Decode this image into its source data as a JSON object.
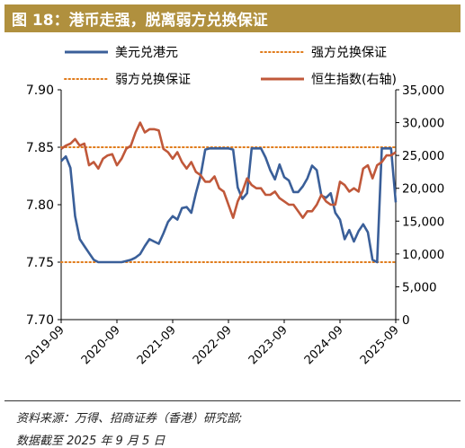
{
  "header": {
    "title": "图 18：港币走强，脱离弱方兑换保证"
  },
  "footer": {
    "source": "资料来源：万得、招商证券（香港）研究部;",
    "date": "数据截至 2025 年 9 月 5 日"
  },
  "chart_data": {
    "type": "line",
    "title": "",
    "xlabel": "",
    "ylabel": "",
    "x_ticks": [
      "2019-09",
      "2020-09",
      "2021-09",
      "2022-09",
      "2023-09",
      "2024-09",
      "2025-09"
    ],
    "ylim_left": [
      7.7,
      7.9
    ],
    "yticks_left": [
      "7.70",
      "7.75",
      "7.80",
      "7.85",
      "7.90"
    ],
    "ylim_right": [
      0,
      35000
    ],
    "yticks_right": [
      "0",
      "5,000",
      "10,000",
      "15,000",
      "20,000",
      "25,000",
      "30,000",
      "35,000"
    ],
    "legend": {
      "placement": "top",
      "items": [
        "美元兑港元",
        "强方兑换保证",
        "弱方兑换保证",
        "恒生指数(右轴)"
      ]
    },
    "reference_lines": [
      {
        "name": "强方兑换保证",
        "value": 7.75,
        "axis": "left",
        "color": "#e07b1a"
      },
      {
        "name": "弱方兑换保证",
        "value": 7.85,
        "axis": "left",
        "color": "#e07b1a"
      }
    ],
    "series": [
      {
        "name": "美元兑港元",
        "axis": "left",
        "color": "#3a5f99",
        "x": [
          "2019-09",
          "2019-10",
          "2019-11",
          "2019-12",
          "2020-01",
          "2020-02",
          "2020-03",
          "2020-04",
          "2020-05",
          "2020-06",
          "2020-07",
          "2020-08",
          "2020-09",
          "2020-10",
          "2020-11",
          "2020-12",
          "2021-01",
          "2021-02",
          "2021-03",
          "2021-04",
          "2021-05",
          "2021-06",
          "2021-07",
          "2021-08",
          "2021-09",
          "2021-10",
          "2021-11",
          "2021-12",
          "2022-01",
          "2022-02",
          "2022-03",
          "2022-04",
          "2022-05",
          "2022-06",
          "2022-07",
          "2022-08",
          "2022-09",
          "2022-10",
          "2022-11",
          "2022-12",
          "2023-01",
          "2023-02",
          "2023-03",
          "2023-04",
          "2023-05",
          "2023-06",
          "2023-07",
          "2023-08",
          "2023-09",
          "2023-10",
          "2023-11",
          "2023-12",
          "2024-01",
          "2024-02",
          "2024-03",
          "2024-04",
          "2024-05",
          "2024-06",
          "2024-07",
          "2024-08",
          "2024-09",
          "2024-10",
          "2024-11",
          "2024-12",
          "2025-01",
          "2025-02",
          "2025-03",
          "2025-04",
          "2025-05",
          "2025-06",
          "2025-07",
          "2025-08",
          "2025-09"
        ],
        "values": [
          7.838,
          7.842,
          7.832,
          7.79,
          7.77,
          7.764,
          7.758,
          7.752,
          7.75,
          7.75,
          7.75,
          7.75,
          7.75,
          7.75,
          7.751,
          7.752,
          7.754,
          7.757,
          7.764,
          7.77,
          7.768,
          7.766,
          7.775,
          7.785,
          7.79,
          7.787,
          7.797,
          7.798,
          7.793,
          7.81,
          7.825,
          7.848,
          7.849,
          7.849,
          7.849,
          7.849,
          7.849,
          7.848,
          7.815,
          7.805,
          7.81,
          7.849,
          7.849,
          7.849,
          7.841,
          7.83,
          7.822,
          7.835,
          7.824,
          7.821,
          7.811,
          7.811,
          7.816,
          7.823,
          7.834,
          7.83,
          7.808,
          7.806,
          7.81,
          7.793,
          7.787,
          7.77,
          7.778,
          7.768,
          7.777,
          7.783,
          7.776,
          7.752,
          7.75,
          7.849,
          7.849,
          7.849,
          7.802
        ]
      },
      {
        "name": "恒生指数(右轴)",
        "axis": "right",
        "color": "#c0583a",
        "x": [
          "2019-09",
          "2019-10",
          "2019-11",
          "2019-12",
          "2020-01",
          "2020-02",
          "2020-03",
          "2020-04",
          "2020-05",
          "2020-06",
          "2020-07",
          "2020-08",
          "2020-09",
          "2020-10",
          "2020-11",
          "2020-12",
          "2021-01",
          "2021-02",
          "2021-03",
          "2021-04",
          "2021-05",
          "2021-06",
          "2021-07",
          "2021-08",
          "2021-09",
          "2021-10",
          "2021-11",
          "2021-12",
          "2022-01",
          "2022-02",
          "2022-03",
          "2022-04",
          "2022-05",
          "2022-06",
          "2022-07",
          "2022-08",
          "2022-09",
          "2022-10",
          "2022-11",
          "2022-12",
          "2023-01",
          "2023-02",
          "2023-03",
          "2023-04",
          "2023-05",
          "2023-06",
          "2023-07",
          "2023-08",
          "2023-09",
          "2023-10",
          "2023-11",
          "2023-12",
          "2024-01",
          "2024-02",
          "2024-03",
          "2024-04",
          "2024-05",
          "2024-06",
          "2024-07",
          "2024-08",
          "2024-09",
          "2024-10",
          "2024-11",
          "2024-12",
          "2025-01",
          "2025-02",
          "2025-03",
          "2025-04",
          "2025-05",
          "2025-06",
          "2025-07",
          "2025-08",
          "2025-09"
        ],
        "values": [
          26000,
          26500,
          26800,
          27500,
          26500,
          26800,
          23500,
          24000,
          23000,
          24500,
          25000,
          25200,
          23500,
          24500,
          26000,
          26500,
          28500,
          30000,
          28500,
          29000,
          29000,
          28800,
          26000,
          25500,
          24500,
          25500,
          24000,
          23000,
          24000,
          22500,
          22000,
          21000,
          21000,
          21800,
          20000,
          19500,
          17500,
          15500,
          18000,
          19500,
          21500,
          20500,
          20000,
          20000,
          19000,
          19000,
          19500,
          18500,
          18000,
          17500,
          17500,
          16500,
          15500,
          16500,
          16500,
          17500,
          19000,
          18000,
          17500,
          17500,
          21000,
          20500,
          19500,
          20000,
          19500,
          23000,
          23500,
          21500,
          23500,
          24000,
          25000,
          25000,
          25500
        ]
      }
    ]
  }
}
